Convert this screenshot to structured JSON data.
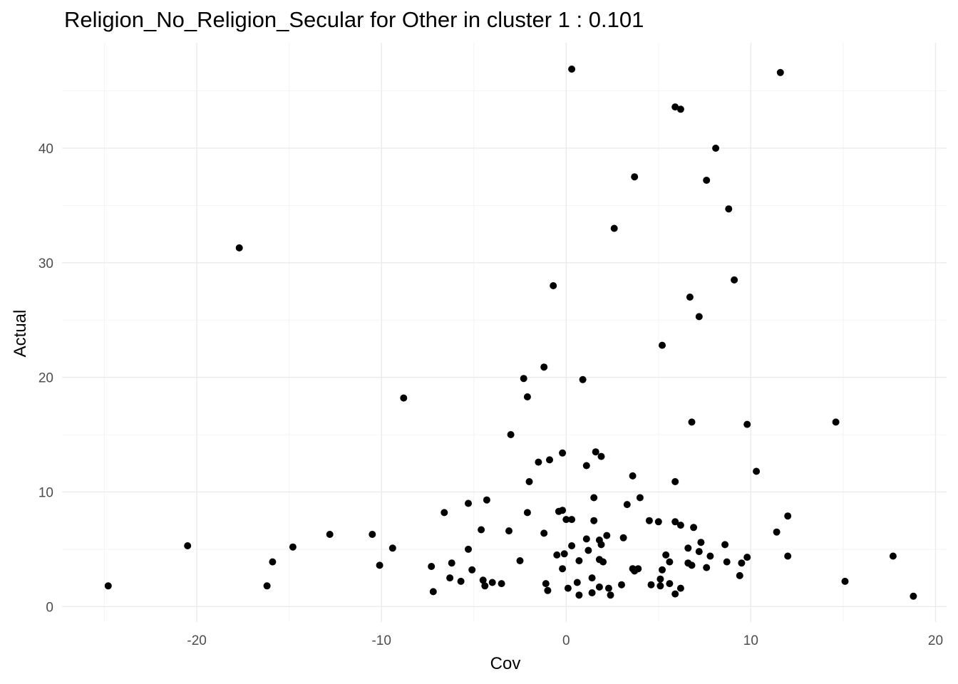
{
  "chart_data": {
    "type": "scatter",
    "title": "Religion_No_Religion_Secular for Other in cluster 1 : 0.101",
    "xlabel": "Cov",
    "ylabel": "Actual",
    "xlim": [
      -27.3,
      20.6
    ],
    "ylim": [
      -1.35,
      49.2
    ],
    "x_ticks": [
      -20,
      -10,
      0,
      10,
      20
    ],
    "y_ticks": [
      0,
      10,
      20,
      30,
      40
    ],
    "x_tick_labels": [
      "-20",
      "-10",
      "0",
      "10",
      "20"
    ],
    "y_tick_labels": [
      "0",
      "10",
      "20",
      "30",
      "40"
    ],
    "grid": true,
    "theme": "minimal",
    "point_color": "#000000",
    "points": [
      [
        0.3,
        46.9
      ],
      [
        11.6,
        46.6
      ],
      [
        5.9,
        43.6
      ],
      [
        6.2,
        43.4
      ],
      [
        8.1,
        40.0
      ],
      [
        3.7,
        37.5
      ],
      [
        7.6,
        37.2
      ],
      [
        8.8,
        34.7
      ],
      [
        2.6,
        33.0
      ],
      [
        -17.7,
        31.3
      ],
      [
        9.1,
        28.5
      ],
      [
        -0.7,
        28.0
      ],
      [
        6.7,
        27.0
      ],
      [
        7.2,
        25.3
      ],
      [
        5.2,
        22.8
      ],
      [
        -1.2,
        20.9
      ],
      [
        -2.3,
        19.9
      ],
      [
        0.9,
        19.8
      ],
      [
        -2.1,
        18.3
      ],
      [
        -8.8,
        18.2
      ],
      [
        6.8,
        16.1
      ],
      [
        14.6,
        16.1
      ],
      [
        9.8,
        15.9
      ],
      [
        -3.0,
        15.0
      ],
      [
        1.6,
        13.5
      ],
      [
        1.9,
        13.1
      ],
      [
        -0.2,
        13.4
      ],
      [
        -0.9,
        12.8
      ],
      [
        -1.5,
        12.6
      ],
      [
        1.1,
        12.3
      ],
      [
        10.3,
        11.8
      ],
      [
        3.6,
        11.4
      ],
      [
        -2.0,
        10.9
      ],
      [
        5.9,
        10.9
      ],
      [
        1.5,
        9.5
      ],
      [
        4.0,
        9.5
      ],
      [
        -4.3,
        9.3
      ],
      [
        -5.3,
        9.0
      ],
      [
        3.3,
        8.9
      ],
      [
        -0.4,
        8.3
      ],
      [
        -0.2,
        8.4
      ],
      [
        -6.6,
        8.2
      ],
      [
        -2.1,
        8.2
      ],
      [
        12.0,
        7.9
      ],
      [
        0.0,
        7.6
      ],
      [
        0.3,
        7.6
      ],
      [
        1.5,
        7.5
      ],
      [
        4.5,
        7.5
      ],
      [
        5.0,
        7.4
      ],
      [
        5.9,
        7.4
      ],
      [
        6.2,
        7.1
      ],
      [
        6.9,
        6.9
      ],
      [
        -4.6,
        6.7
      ],
      [
        -3.1,
        6.6
      ],
      [
        11.4,
        6.5
      ],
      [
        -1.2,
        6.4
      ],
      [
        -10.5,
        6.3
      ],
      [
        -12.8,
        6.3
      ],
      [
        2.2,
        6.2
      ],
      [
        3.1,
        6.0
      ],
      [
        1.1,
        5.9
      ],
      [
        1.8,
        5.8
      ],
      [
        7.3,
        5.6
      ],
      [
        1.9,
        5.4
      ],
      [
        -20.5,
        5.3
      ],
      [
        0.3,
        5.3
      ],
      [
        8.6,
        5.4
      ],
      [
        -14.8,
        5.2
      ],
      [
        -9.4,
        5.1
      ],
      [
        6.6,
        5.1
      ],
      [
        -5.3,
        5.0
      ],
      [
        1.2,
        4.9
      ],
      [
        7.2,
        4.8
      ],
      [
        -0.1,
        4.6
      ],
      [
        -0.5,
        4.5
      ],
      [
        5.4,
        4.5
      ],
      [
        7.8,
        4.4
      ],
      [
        9.8,
        4.3
      ],
      [
        12.0,
        4.4
      ],
      [
        17.7,
        4.4
      ],
      [
        1.8,
        4.1
      ],
      [
        0.7,
        4.0
      ],
      [
        2.0,
        3.9
      ],
      [
        -2.5,
        4.0
      ],
      [
        -15.9,
        3.9
      ],
      [
        8.7,
        3.9
      ],
      [
        -6.2,
        3.8
      ],
      [
        5.6,
        3.9
      ],
      [
        6.6,
        3.8
      ],
      [
        9.5,
        3.8
      ],
      [
        -10.1,
        3.6
      ],
      [
        -7.3,
        3.5
      ],
      [
        6.8,
        3.6
      ],
      [
        7.6,
        3.4
      ],
      [
        -0.2,
        3.3
      ],
      [
        3.6,
        3.3
      ],
      [
        3.9,
        3.3
      ],
      [
        3.7,
        3.1
      ],
      [
        -5.1,
        3.2
      ],
      [
        5.2,
        3.2
      ],
      [
        9.4,
        2.7
      ],
      [
        -6.3,
        2.5
      ],
      [
        1.4,
        2.5
      ],
      [
        5.1,
        2.4
      ],
      [
        -5.7,
        2.2
      ],
      [
        -4.5,
        2.3
      ],
      [
        -4.0,
        2.1
      ],
      [
        -3.5,
        2.0
      ],
      [
        15.1,
        2.2
      ],
      [
        0.6,
        2.1
      ],
      [
        5.6,
        2.0
      ],
      [
        -1.1,
        2.0
      ],
      [
        -24.8,
        1.8
      ],
      [
        -16.2,
        1.8
      ],
      [
        -4.4,
        1.8
      ],
      [
        3.0,
        1.9
      ],
      [
        4.6,
        1.9
      ],
      [
        5.1,
        1.8
      ],
      [
        1.8,
        1.7
      ],
      [
        2.3,
        1.6
      ],
      [
        0.1,
        1.6
      ],
      [
        6.2,
        1.6
      ],
      [
        -1.0,
        1.4
      ],
      [
        -7.2,
        1.3
      ],
      [
        1.4,
        1.2
      ],
      [
        5.9,
        1.1
      ],
      [
        0.7,
        1.0
      ],
      [
        2.4,
        1.0
      ],
      [
        18.8,
        0.9
      ]
    ]
  }
}
